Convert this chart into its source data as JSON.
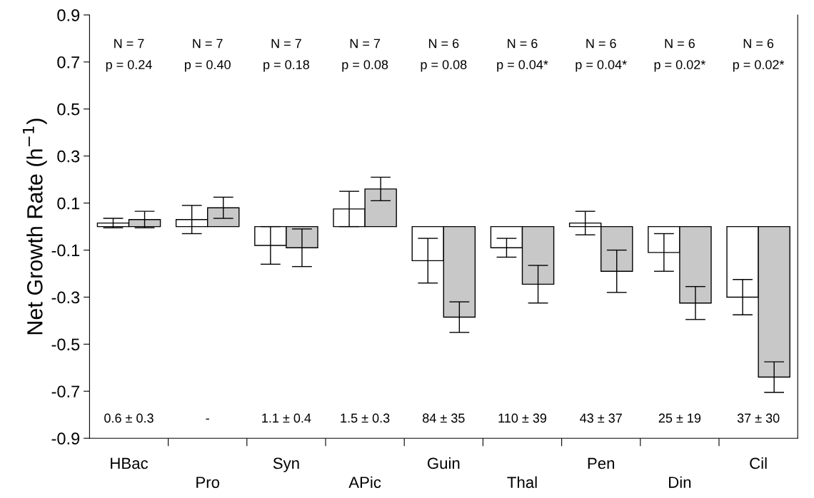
{
  "chart_data": {
    "type": "bar",
    "ylabel": "Net Growth Rate (h$^{−1}$)",
    "categories": [
      "HBac",
      "Pro",
      "Syn",
      "APic",
      "Guin",
      "Thal",
      "Pen",
      "Din",
      "Cil"
    ],
    "series": [
      {
        "color": "#ffffff",
        "values": [
          0.015,
          0.03,
          -0.08,
          0.075,
          -0.145,
          -0.09,
          0.015,
          -0.11,
          -0.3
        ],
        "errors": [
          0.02,
          0.06,
          0.08,
          0.075,
          0.095,
          0.04,
          0.05,
          0.08,
          0.075
        ]
      },
      {
        "color": "#c8c8c8",
        "values": [
          0.03,
          0.08,
          -0.09,
          0.16,
          -0.385,
          -0.245,
          -0.19,
          -0.325,
          -0.64
        ],
        "errors": [
          0.035,
          0.045,
          0.08,
          0.05,
          0.065,
          0.08,
          0.09,
          0.07,
          0.065
        ]
      }
    ],
    "ylim": [
      -0.9,
      0.9
    ],
    "yticks": [
      -0.9,
      -0.7,
      -0.5,
      -0.3,
      -0.1,
      0.1,
      0.3,
      0.5,
      0.7,
      0.9
    ],
    "grid": false,
    "legend": false,
    "annotations": [
      "N = 7",
      "N = 7",
      "N = 7",
      "N = 7",
      "N = 6",
      "N = 6",
      "N = 6",
      "N = 6",
      "N = 6",
      "p = 0.24",
      "p = 0.40",
      "p = 0.18",
      "p = 0.08",
      "p = 0.08",
      "p = 0.04*",
      "p = 0.04*",
      "p = 0.02*",
      "p = 0.02*",
      "0.6 ± 0.3",
      "-",
      "1.1 ± 0.4",
      "1.5 ± 0.3",
      "84 ± 35",
      "110 ± 39",
      "43 ± 37",
      "25 ± 19",
      "37 ± 30"
    ]
  }
}
